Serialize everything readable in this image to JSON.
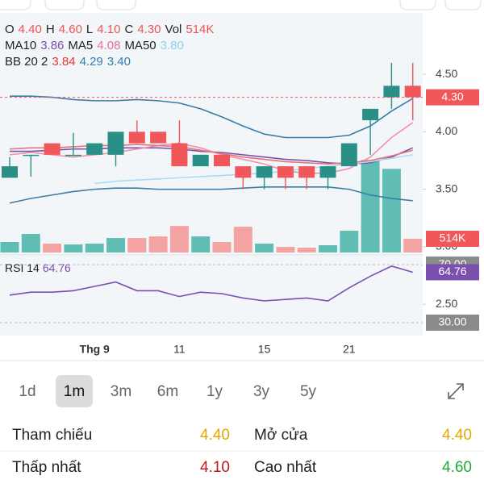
{
  "chart_data": {
    "type": "candlestick",
    "legend_rows": [
      [
        {
          "text": "O",
          "color": "#222222"
        },
        {
          "text": "4.40",
          "color": "#ef5350"
        },
        {
          "text": "H",
          "color": "#222222"
        },
        {
          "text": "4.60",
          "color": "#ef5350"
        },
        {
          "text": "L",
          "color": "#222222"
        },
        {
          "text": "4.10",
          "color": "#ef5350"
        },
        {
          "text": "C",
          "color": "#222222"
        },
        {
          "text": "4.30",
          "color": "#ef5350"
        },
        {
          "text": "Vol",
          "color": "#222222"
        },
        {
          "text": "514K",
          "color": "#ef5350"
        }
      ],
      [
        {
          "text": "MA10",
          "color": "#222222"
        },
        {
          "text": "3.86",
          "color": "#7b4fae"
        },
        {
          "text": "MA5",
          "color": "#222222"
        },
        {
          "text": "4.08",
          "color": "#ec6f95"
        },
        {
          "text": "MA50",
          "color": "#222222"
        },
        {
          "text": "3.80",
          "color": "#8fcff0"
        }
      ],
      [
        {
          "text": "BB 20 2",
          "color": "#222222"
        },
        {
          "text": "3.84",
          "color": "#e53935"
        },
        {
          "text": "4.29",
          "color": "#2f7fae"
        },
        {
          "text": "3.40",
          "color": "#2f7fae"
        }
      ]
    ],
    "categories": [
      null,
      null,
      null,
      null,
      "Thg 9",
      null,
      null,
      null,
      "11",
      null,
      null,
      null,
      "15",
      null,
      null,
      null,
      "21",
      null,
      null,
      null
    ],
    "open": [
      3.6,
      3.8,
      3.9,
      3.8,
      3.8,
      3.8,
      4.0,
      4.0,
      3.9,
      3.7,
      3.8,
      3.7,
      3.6,
      3.7,
      3.7,
      3.6,
      3.7,
      4.1,
      4.3,
      4.4
    ],
    "high": [
      3.78,
      3.8,
      3.9,
      3.99,
      3.9,
      4.0,
      4.1,
      4.0,
      4.1,
      3.8,
      3.8,
      3.7,
      3.7,
      3.7,
      3.7,
      3.7,
      3.9,
      4.2,
      4.6,
      4.6
    ],
    "low": [
      3.6,
      3.61,
      3.8,
      3.8,
      3.8,
      3.7,
      3.9,
      3.9,
      3.7,
      3.7,
      3.7,
      3.5,
      3.5,
      3.5,
      3.5,
      3.5,
      3.7,
      3.8,
      4.2,
      4.1
    ],
    "close": [
      3.7,
      3.8,
      3.8,
      3.8,
      3.9,
      4.0,
      3.9,
      3.9,
      3.7,
      3.8,
      3.7,
      3.6,
      3.7,
      3.6,
      3.6,
      3.7,
      3.9,
      4.2,
      4.4,
      4.3
    ],
    "volume": [
      393000,
      695000,
      333000,
      302000,
      333000,
      544000,
      544000,
      604000,
      997000,
      604000,
      393000,
      967000,
      333000,
      211000,
      181000,
      272000,
      816000,
      3474000,
      3142000,
      514000
    ],
    "up_color": "#2a8f87",
    "down_color": "#f0575a",
    "volume_up_color": "#5fbdb4",
    "volume_down_color": "#f4a3a3",
    "lines": [
      {
        "name": "MA10",
        "color": "#7b4fae",
        "values": [
          3.83,
          3.83,
          3.84,
          3.85,
          3.85,
          3.86,
          3.86,
          3.86,
          3.85,
          3.83,
          3.82,
          3.8,
          3.78,
          3.76,
          3.75,
          3.73,
          3.72,
          3.73,
          3.78,
          3.86
        ]
      },
      {
        "name": "MA5",
        "color": "#f08fae",
        "values": [
          3.8,
          3.82,
          3.8,
          3.78,
          3.8,
          3.82,
          3.85,
          3.88,
          3.9,
          3.86,
          3.8,
          3.76,
          3.72,
          3.66,
          3.64,
          3.64,
          3.68,
          3.78,
          3.95,
          4.08
        ]
      },
      {
        "name": "MA50",
        "color": "#a9dcf4",
        "values": [
          null,
          null,
          null,
          null,
          3.55,
          3.57,
          3.58,
          3.59,
          3.6,
          3.61,
          3.62,
          3.63,
          3.64,
          3.66,
          3.68,
          3.7,
          3.72,
          3.74,
          3.77,
          3.8
        ]
      },
      {
        "name": "BB upper",
        "color": "#3a7ca5",
        "values": [
          4.31,
          4.31,
          4.3,
          4.28,
          4.27,
          4.27,
          4.28,
          4.27,
          4.25,
          4.2,
          4.13,
          4.05,
          3.98,
          3.95,
          3.95,
          3.95,
          3.97,
          4.05,
          4.18,
          4.29
        ]
      },
      {
        "name": "BB middle",
        "color": "#e57373",
        "values": [
          3.85,
          3.86,
          3.86,
          3.87,
          3.88,
          3.88,
          3.89,
          3.88,
          3.87,
          3.84,
          3.81,
          3.78,
          3.76,
          3.74,
          3.73,
          3.72,
          3.73,
          3.75,
          3.79,
          3.84
        ]
      },
      {
        "name": "BB lower",
        "color": "#3a7ca5",
        "values": [
          3.38,
          3.42,
          3.45,
          3.48,
          3.5,
          3.51,
          3.51,
          3.5,
          3.5,
          3.5,
          3.5,
          3.51,
          3.52,
          3.52,
          3.52,
          3.52,
          3.5,
          3.45,
          3.42,
          3.4
        ]
      }
    ],
    "ylim": [
      2.95,
      5.02
    ],
    "yticks": [
      {
        "value": 2.5,
        "label": "2.50"
      },
      {
        "value": 3.0,
        "label": "3.00"
      },
      {
        "value": 3.5,
        "label": "3.50"
      },
      {
        "value": 4.0,
        "label": "4.00"
      },
      {
        "value": 4.5,
        "label": "4.50"
      }
    ],
    "volume_ylim": [
      0,
      4000000
    ],
    "last_price_label": "4.30",
    "last_volume_label": "514K",
    "rsi": {
      "label": "RSI 14",
      "value_label": "64.76",
      "color": "#7b4fae",
      "values": [
        49,
        51,
        51,
        52,
        55,
        58,
        52,
        52,
        48,
        51,
        50,
        47,
        45,
        46,
        47,
        45,
        54,
        62,
        69,
        64.76
      ],
      "ylim": [
        23.3,
        75.6
      ],
      "ticks": [
        {
          "value": 70,
          "label": "70.00"
        },
        {
          "value": 30,
          "label": "30.00"
        }
      ]
    }
  },
  "periods": {
    "items": [
      "1d",
      "1m",
      "3m",
      "6m",
      "1y",
      "3y",
      "5y"
    ],
    "selected": 1
  },
  "stats": [
    [
      {
        "label": "Tham chiếu",
        "value": "4.40",
        "color": "#e2a900"
      },
      {
        "label": "Mở cửa",
        "value": "4.40",
        "color": "#e2a900"
      }
    ],
    [
      {
        "label": "Thấp nhất",
        "value": "4.10",
        "color": "#c0171e"
      },
      {
        "label": "Cao nhất",
        "value": "4.60",
        "color": "#22a839"
      }
    ]
  ]
}
